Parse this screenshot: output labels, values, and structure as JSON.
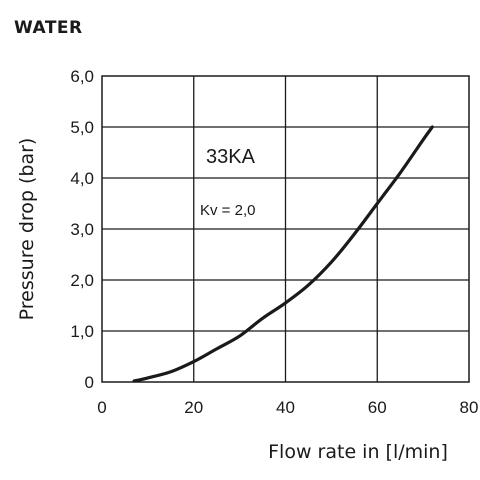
{
  "heading": "WATER",
  "chart_data": {
    "type": "line",
    "xlabel": "Flow rate in [l/min]",
    "ylabel": "Pressure drop (bar)",
    "xlim": [
      0,
      80
    ],
    "ylim": [
      0,
      6
    ],
    "x_ticks": [
      "0",
      "20",
      "40",
      "60",
      "80"
    ],
    "y_ticks": [
      "0",
      "1,0",
      "2,0",
      "3,0",
      "4,0",
      "5,0",
      "6,0"
    ],
    "grid": true,
    "annotations": {
      "model": "33KA",
      "kv": "Kv  = 2,0"
    },
    "series": [
      {
        "x": [
          7,
          10,
          15,
          20,
          25,
          30,
          35,
          40,
          45,
          50,
          55,
          60,
          65,
          70,
          72
        ],
        "y": [
          0.02,
          0.08,
          0.2,
          0.4,
          0.65,
          0.9,
          1.25,
          1.55,
          1.9,
          2.35,
          2.9,
          3.5,
          4.1,
          4.75,
          5.0
        ]
      }
    ]
  }
}
